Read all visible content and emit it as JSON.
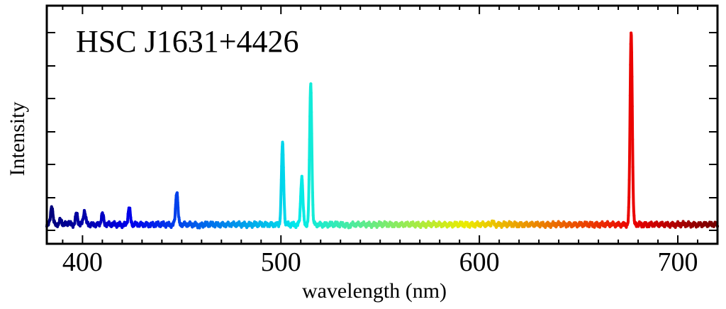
{
  "chart_data": {
    "type": "line",
    "title": "HSC J1631+4426",
    "xlabel": "wavelength (nm)",
    "ylabel": "Intensity",
    "xlim": [
      382,
      720
    ],
    "ylim": [
      0,
      1
    ],
    "x_ticks": [
      400,
      500,
      600,
      700
    ],
    "x_tick_labels": [
      "400",
      "500",
      "600",
      "700"
    ],
    "y_tick_labels_shown": false,
    "grid": false,
    "colormap": "jet",
    "color_by": "x",
    "series": [
      {
        "baseline": 0.018,
        "peaks": [
          {
            "x": 384.5,
            "y": 0.11
          },
          {
            "x": 389,
            "y": 0.04
          },
          {
            "x": 393,
            "y": 0.03
          },
          {
            "x": 397,
            "y": 0.07
          },
          {
            "x": 401,
            "y": 0.085
          },
          {
            "x": 410,
            "y": 0.07
          },
          {
            "x": 423.5,
            "y": 0.1
          },
          {
            "x": 447.5,
            "y": 0.18
          },
          {
            "x": 459,
            "y": 0.01
          },
          {
            "x": 500.8,
            "y": 0.41
          },
          {
            "x": 510.5,
            "y": 0.25
          },
          {
            "x": 515,
            "y": 0.7
          },
          {
            "x": 534,
            "y": 0.01
          },
          {
            "x": 606.5,
            "y": 0.03
          },
          {
            "x": 676.5,
            "y": 0.96
          }
        ]
      }
    ]
  }
}
